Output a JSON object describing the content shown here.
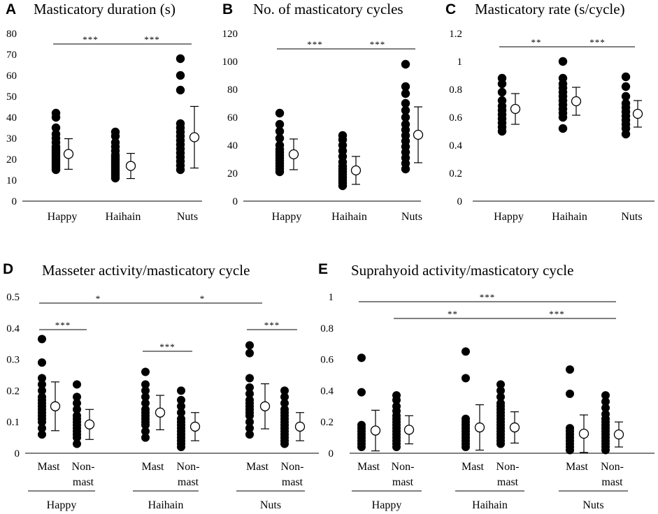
{
  "chart_data": [
    {
      "type": "scatter",
      "panel_label": "A",
      "title": "Masticatory duration (s)",
      "ylim": [
        0,
        80
      ],
      "yticks": [
        "0",
        "10",
        "20",
        "30",
        "40",
        "50",
        "60",
        "70",
        "80"
      ],
      "categories": [
        "Happy",
        "Haihain",
        "Nuts"
      ],
      "points": [
        [
          15,
          16,
          17,
          18,
          19,
          20,
          21,
          22,
          23,
          24,
          25,
          26,
          28,
          30,
          32,
          35,
          40,
          42
        ],
        [
          11,
          12,
          13,
          14,
          15,
          16,
          17,
          18,
          19,
          20,
          21,
          22,
          24,
          26,
          28,
          31,
          33
        ],
        [
          15,
          17,
          19,
          21,
          23,
          25,
          27,
          29,
          31,
          33,
          35,
          37,
          53,
          60,
          68
        ]
      ],
      "means": [
        22.5,
        16.8,
        30.5
      ],
      "sd": [
        7.3,
        6.0,
        14.7
      ],
      "significance": [
        {
          "from": 0,
          "to": 1,
          "label": "***"
        },
        {
          "from": 1,
          "to": 2,
          "label": "***"
        }
      ]
    },
    {
      "type": "scatter",
      "panel_label": "B",
      "title": "No. of masticatory cycles",
      "ylim": [
        0,
        120
      ],
      "yticks": [
        "0",
        "20",
        "40",
        "60",
        "80",
        "100",
        "120"
      ],
      "categories": [
        "Happy",
        "Haihain",
        "Nuts"
      ],
      "points": [
        [
          21,
          23,
          25,
          27,
          29,
          31,
          33,
          35,
          37,
          40,
          45,
          50,
          55,
          63
        ],
        [
          11,
          13,
          15,
          17,
          19,
          21,
          23,
          25,
          28,
          32,
          36,
          40,
          44,
          47
        ],
        [
          23,
          27,
          31,
          35,
          39,
          43,
          47,
          51,
          55,
          60,
          65,
          70,
          77,
          82,
          98
        ]
      ],
      "means": [
        33.5,
        22,
        47.5
      ],
      "sd": [
        11,
        10,
        20
      ],
      "significance": [
        {
          "from": 0,
          "to": 1,
          "label": "***"
        },
        {
          "from": 1,
          "to": 2,
          "label": "***"
        }
      ]
    },
    {
      "type": "scatter",
      "panel_label": "C",
      "title": "Masticatory rate (s/cycle)",
      "ylim": [
        0,
        1.2
      ],
      "yticks": [
        "0",
        "0.2",
        "0.4",
        "0.6",
        "0.8",
        "1",
        "1.2"
      ],
      "categories": [
        "Happy",
        "Haihain",
        "Nuts"
      ],
      "points": [
        [
          0.5,
          0.53,
          0.56,
          0.59,
          0.62,
          0.65,
          0.68,
          0.72,
          0.78,
          0.84,
          0.88
        ],
        [
          0.52,
          0.6,
          0.63,
          0.66,
          0.69,
          0.72,
          0.75,
          0.78,
          0.81,
          0.84,
          0.88,
          1.0
        ],
        [
          0.48,
          0.52,
          0.55,
          0.58,
          0.61,
          0.64,
          0.67,
          0.7,
          0.75,
          0.82,
          0.89
        ]
      ],
      "means": [
        0.66,
        0.715,
        0.625
      ],
      "sd": [
        0.11,
        0.1,
        0.095
      ],
      "significance": [
        {
          "from": 0,
          "to": 1,
          "label": "**"
        },
        {
          "from": 1,
          "to": 2,
          "label": "***"
        }
      ]
    },
    {
      "type": "scatter",
      "panel_label": "D",
      "title": "Masseter activity/masticatory cycle",
      "ylim": [
        0,
        0.5
      ],
      "yticks": [
        "0",
        "0.1",
        "0.2",
        "0.3",
        "0.4",
        "0.5"
      ],
      "categories": [
        "Mast",
        "Non-\nmast",
        "Mast",
        "Non-\nmast",
        "Mast",
        "Non-\nmast"
      ],
      "groups": [
        "Happy",
        "Haihain",
        "Nuts"
      ],
      "points": [
        [
          0.06,
          0.08,
          0.1,
          0.11,
          0.12,
          0.13,
          0.14,
          0.15,
          0.16,
          0.17,
          0.18,
          0.2,
          0.22,
          0.24,
          0.29,
          0.365
        ],
        [
          0.03,
          0.05,
          0.06,
          0.07,
          0.08,
          0.09,
          0.1,
          0.11,
          0.12,
          0.14,
          0.16,
          0.18,
          0.22
        ],
        [
          0.05,
          0.07,
          0.09,
          0.1,
          0.11,
          0.12,
          0.13,
          0.14,
          0.16,
          0.18,
          0.2,
          0.22,
          0.26
        ],
        [
          0.02,
          0.03,
          0.04,
          0.05,
          0.06,
          0.07,
          0.08,
          0.09,
          0.1,
          0.11,
          0.13,
          0.15,
          0.17,
          0.2
        ],
        [
          0.06,
          0.08,
          0.1,
          0.12,
          0.13,
          0.14,
          0.15,
          0.16,
          0.17,
          0.19,
          0.21,
          0.24,
          0.32,
          0.345
        ],
        [
          0.03,
          0.04,
          0.05,
          0.06,
          0.07,
          0.08,
          0.09,
          0.1,
          0.11,
          0.12,
          0.13,
          0.14,
          0.16,
          0.18,
          0.2
        ]
      ],
      "means": [
        0.15,
        0.092,
        0.13,
        0.085,
        0.15,
        0.085
      ],
      "sd": [
        0.078,
        0.048,
        0.055,
        0.045,
        0.072,
        0.045
      ],
      "significance": [
        {
          "from": 0,
          "to": 1,
          "label": "***"
        },
        {
          "from": 2,
          "to": 3,
          "label": "***"
        },
        {
          "from": 4,
          "to": 5,
          "label": "***"
        },
        {
          "from": 0,
          "to": 2,
          "label": "*"
        },
        {
          "from": 2,
          "to": 4,
          "label": "*"
        }
      ]
    },
    {
      "type": "scatter",
      "panel_label": "E",
      "title": "Suprahyoid activity/masticatory cycle",
      "ylim": [
        0,
        1
      ],
      "yticks": [
        "0",
        "0.2",
        "0.4",
        "0.6",
        "0.8",
        "1"
      ],
      "categories": [
        "Mast",
        "Non-\nmast",
        "Mast",
        "Non-\nmast",
        "Mast",
        "Non-\nmast"
      ],
      "groups": [
        "Happy",
        "Haihain",
        "Nuts"
      ],
      "points": [
        [
          0.04,
          0.06,
          0.08,
          0.1,
          0.12,
          0.14,
          0.16,
          0.18,
          0.39,
          0.61
        ],
        [
          0.04,
          0.06,
          0.08,
          0.1,
          0.12,
          0.14,
          0.16,
          0.18,
          0.2,
          0.22,
          0.24,
          0.27,
          0.3,
          0.34,
          0.37
        ],
        [
          0.04,
          0.06,
          0.08,
          0.1,
          0.12,
          0.14,
          0.16,
          0.18,
          0.2,
          0.22,
          0.48,
          0.65
        ],
        [
          0.06,
          0.08,
          0.1,
          0.12,
          0.14,
          0.16,
          0.18,
          0.2,
          0.22,
          0.24,
          0.26,
          0.28,
          0.3,
          0.32,
          0.36,
          0.4,
          0.44
        ],
        [
          0.02,
          0.04,
          0.06,
          0.08,
          0.1,
          0.12,
          0.14,
          0.16,
          0.38,
          0.535
        ],
        [
          0.02,
          0.04,
          0.06,
          0.08,
          0.1,
          0.12,
          0.14,
          0.16,
          0.18,
          0.2,
          0.22,
          0.25,
          0.29,
          0.33,
          0.37
        ]
      ],
      "means": [
        0.145,
        0.15,
        0.165,
        0.165,
        0.125,
        0.12
      ],
      "sd": [
        0.13,
        0.09,
        0.145,
        0.1,
        0.12,
        0.08
      ],
      "significance": [
        {
          "from": 1,
          "to": 3,
          "label": "**"
        },
        {
          "from": 3,
          "to": 5,
          "label": "***"
        },
        {
          "from": 0,
          "to": 5,
          "label": "***"
        }
      ]
    }
  ]
}
